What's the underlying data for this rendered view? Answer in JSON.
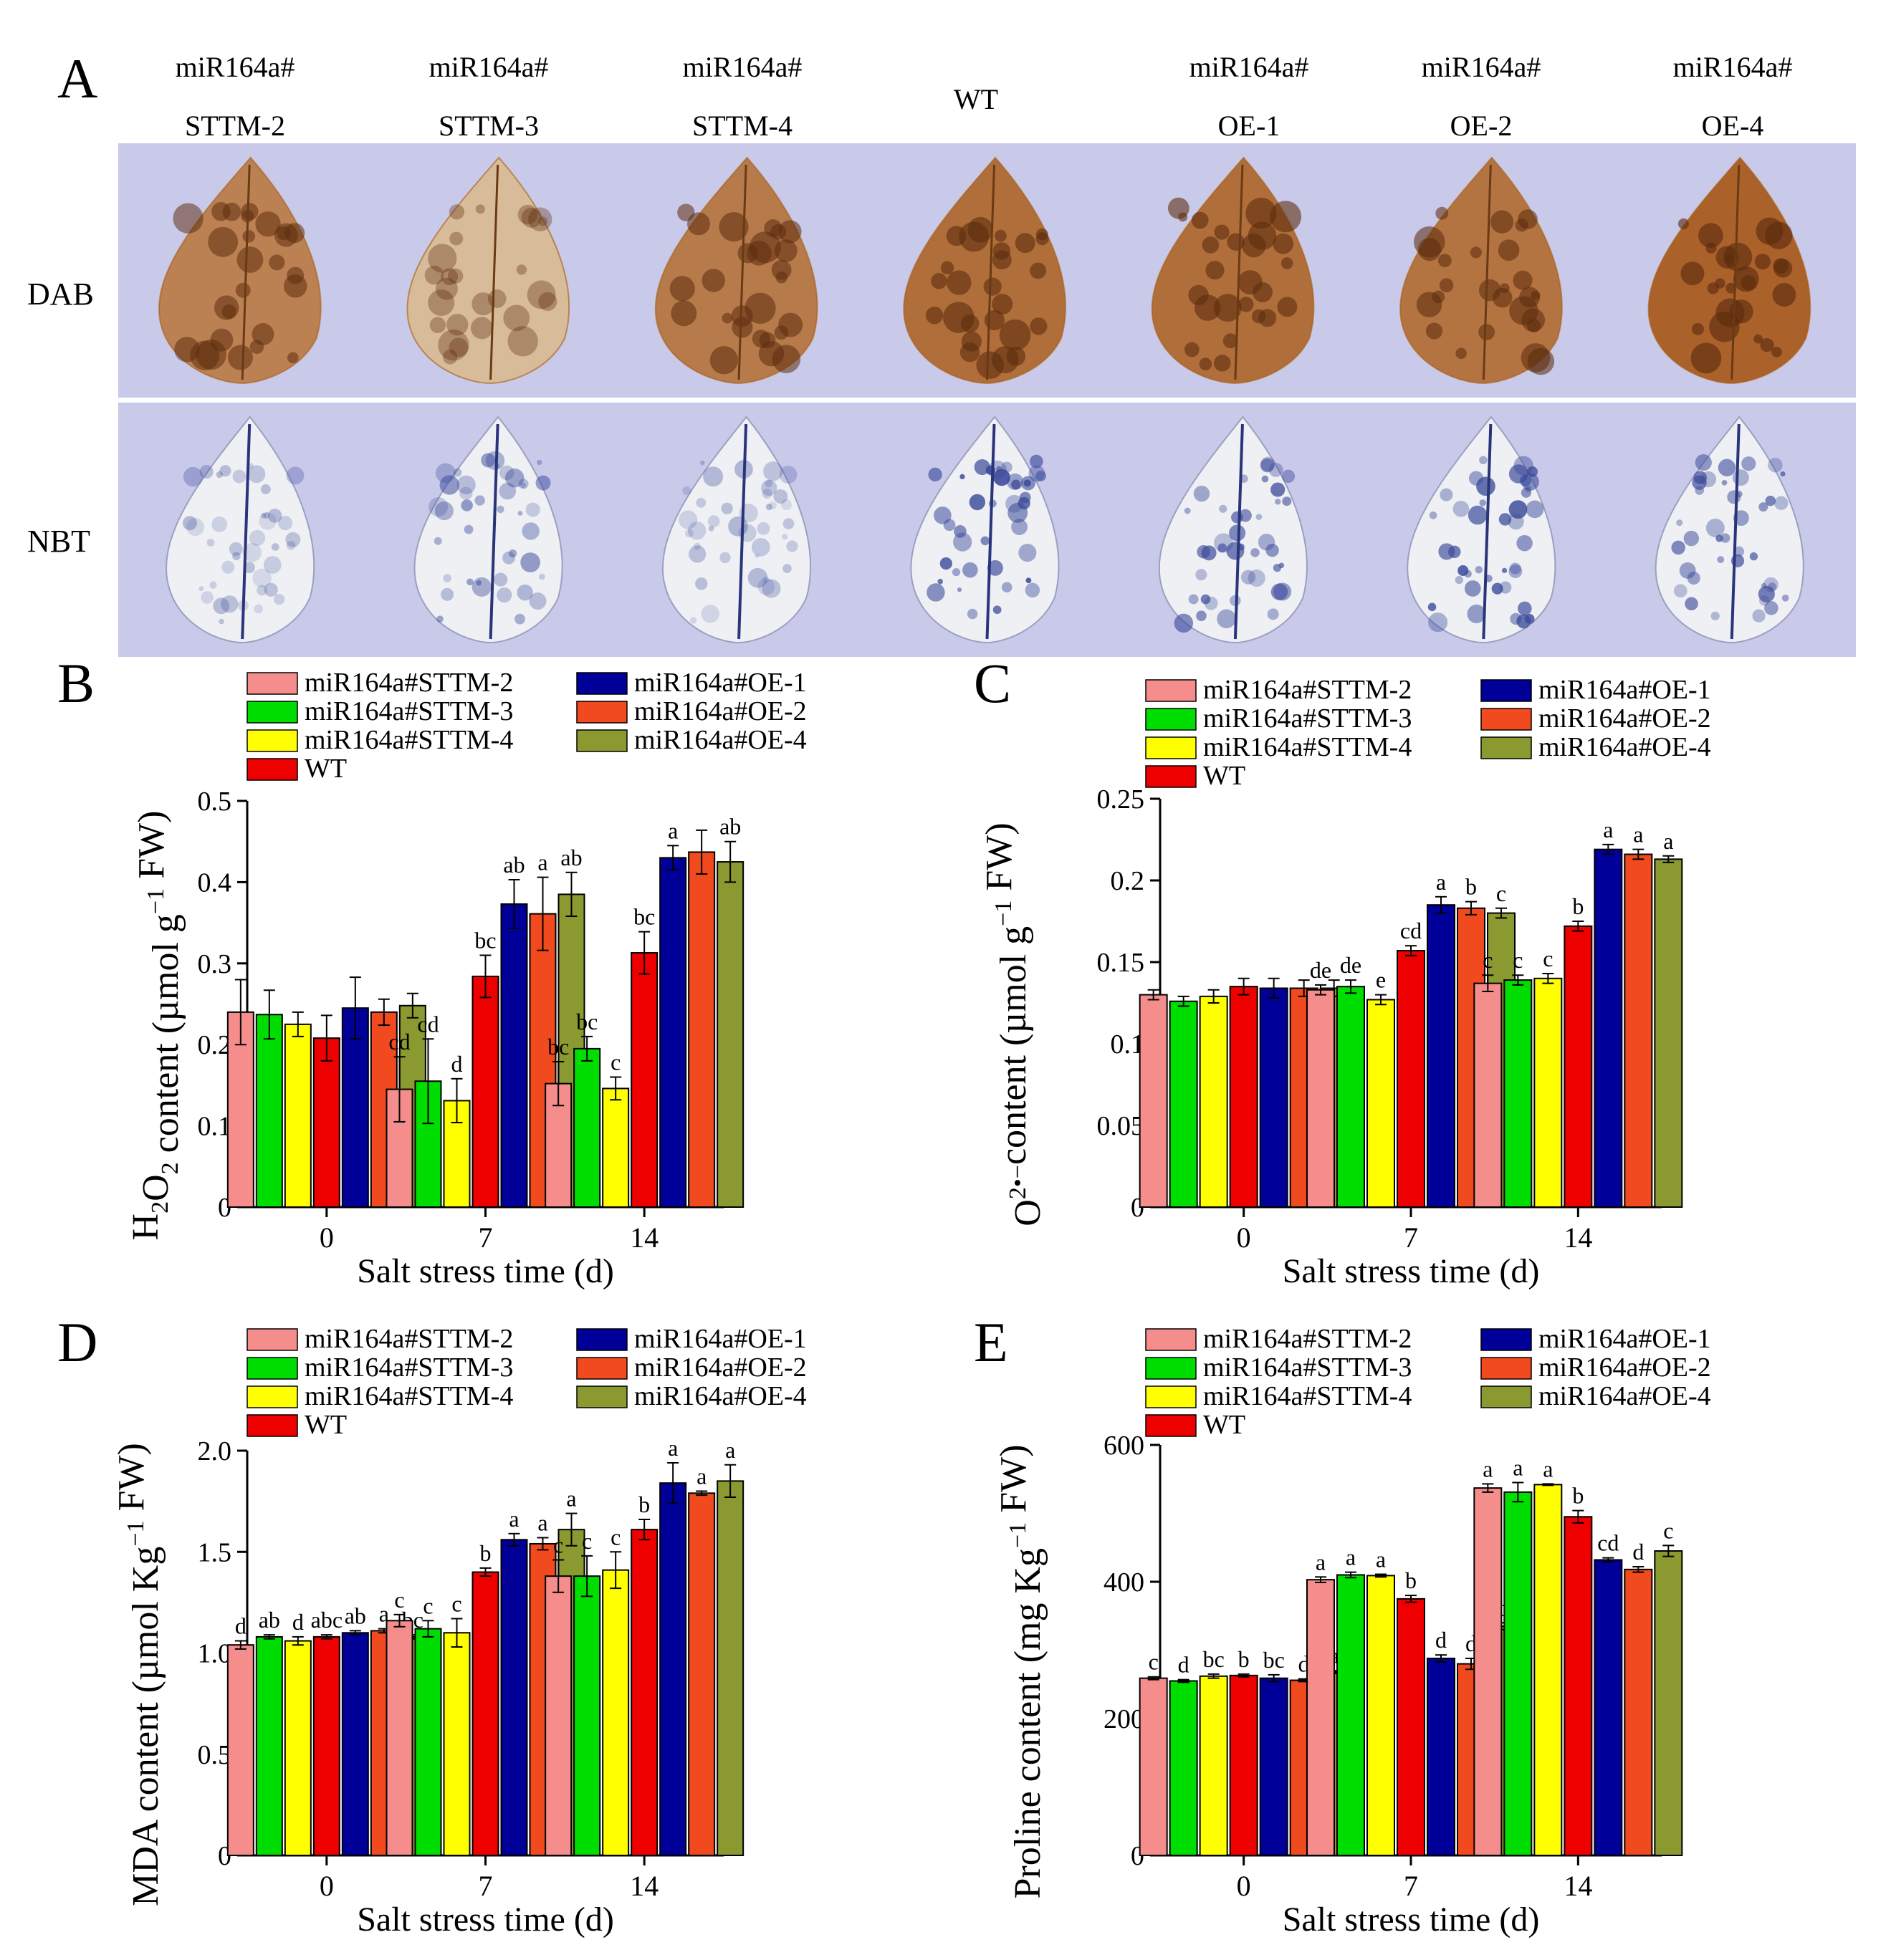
{
  "panel_a": {
    "letter": "A",
    "column_labels": [
      {
        "line1": "miR164a#",
        "line2": "STTM-2"
      },
      {
        "line1": "miR164a#",
        "line2": "STTM-3"
      },
      {
        "line1": "miR164a#",
        "line2": "STTM-4"
      },
      {
        "line1": "WT",
        "line2": ""
      },
      {
        "line1": "miR164a#",
        "line2": "OE-1"
      },
      {
        "line1": "miR164a#",
        "line2": "OE-2"
      },
      {
        "line1": "miR164a#",
        "line2": "OE-4"
      }
    ],
    "rows": [
      "DAB",
      "NBT"
    ]
  },
  "colors": {
    "series": [
      "#f58d8d",
      "#00dd00",
      "#ffff00",
      "#ee0000",
      "#000099",
      "#f04a1e",
      "#8a9a30"
    ],
    "dab_leaf": "#a65a22",
    "nbt_leaf": "#3b4a9a",
    "photo_bg": "#c9c9ea"
  },
  "chart_data": [
    {
      "panel": "B",
      "type": "bar",
      "title": "",
      "ylabel_parts": [
        "H",
        "2",
        "O",
        "2",
        " content (µmol g",
        "−1",
        " FW)"
      ],
      "xlabel": "Salt stress time (d)",
      "categories": [
        "0",
        "7",
        "14"
      ],
      "ylim": [
        0,
        0.5
      ],
      "yticks": [
        "0",
        "0.1",
        "0.2",
        "0.3",
        "0.4",
        "0.5"
      ],
      "ytick_values": [
        0,
        0.1,
        0.2,
        0.3,
        0.4,
        0.5
      ],
      "series": [
        {
          "name": "miR164a#STTM-2",
          "values": [
            0.24,
            0.145,
            0.152
          ],
          "errors": [
            0.04,
            0.04,
            0.027
          ],
          "letters": [
            "",
            "cd",
            "bc"
          ]
        },
        {
          "name": "miR164a#STTM-3",
          "values": [
            0.237,
            0.155,
            0.195
          ],
          "errors": [
            0.03,
            0.052,
            0.015
          ],
          "letters": [
            "",
            "cd",
            "bc"
          ]
        },
        {
          "name": "miR164a#STTM-4",
          "values": [
            0.225,
            0.131,
            0.146
          ],
          "errors": [
            0.015,
            0.027,
            0.014
          ],
          "letters": [
            "",
            "d",
            "c"
          ]
        },
        {
          "name": "WT",
          "values": [
            0.208,
            0.284,
            0.313
          ],
          "errors": [
            0.028,
            0.026,
            0.026
          ],
          "letters": [
            "",
            "bc",
            "bc"
          ]
        },
        {
          "name": "miR164a#OE-1",
          "values": [
            0.245,
            0.373,
            0.43
          ],
          "errors": [
            0.038,
            0.03,
            0.015
          ],
          "letters": [
            "",
            "ab",
            "a"
          ]
        },
        {
          "name": "miR164a#OE-2",
          "values": [
            0.24,
            0.361,
            0.437
          ],
          "errors": [
            0.016,
            0.045,
            0.027
          ],
          "letters": [
            "",
            "a",
            ""
          ]
        },
        {
          "name": "miR164a#OE-4",
          "values": [
            0.248,
            0.385,
            0.425
          ],
          "errors": [
            0.015,
            0.027,
            0.025
          ],
          "letters": [
            "",
            "ab",
            "ab"
          ]
        }
      ]
    },
    {
      "panel": "C",
      "type": "bar",
      "title": "",
      "ylabel_parts": [
        "O",
        "2•−",
        "content (µmol g",
        "−1",
        " FW)"
      ],
      "xlabel": "Salt stress time (d)",
      "categories": [
        "0",
        "7",
        "14"
      ],
      "ylim": [
        0,
        0.25
      ],
      "yticks": [
        "0",
        "0.05",
        "0.1",
        "0.15",
        "0.2",
        "0.25"
      ],
      "ytick_values": [
        0,
        0.05,
        0.1,
        0.15,
        0.2,
        0.25
      ],
      "series": [
        {
          "name": "miR164a#STTM-2",
          "values": [
            0.13,
            0.133,
            0.137
          ],
          "errors": [
            0.003,
            0.003,
            0.005
          ],
          "letters": [
            "",
            "de",
            "c"
          ]
        },
        {
          "name": "miR164a#STTM-3",
          "values": [
            0.126,
            0.135,
            0.139
          ],
          "errors": [
            0.003,
            0.004,
            0.003
          ],
          "letters": [
            "",
            "de",
            "c"
          ]
        },
        {
          "name": "miR164a#STTM-4",
          "values": [
            0.129,
            0.127,
            0.14
          ],
          "errors": [
            0.004,
            0.003,
            0.003
          ],
          "letters": [
            "",
            "e",
            "c"
          ]
        },
        {
          "name": "WT",
          "values": [
            0.135,
            0.157,
            0.172
          ],
          "errors": [
            0.005,
            0.003,
            0.003
          ],
          "letters": [
            "",
            "cd",
            "b"
          ]
        },
        {
          "name": "miR164a#OE-1",
          "values": [
            0.134,
            0.185,
            0.219
          ],
          "errors": [
            0.006,
            0.005,
            0.003
          ],
          "letters": [
            "",
            "a",
            "a"
          ]
        },
        {
          "name": "miR164a#OE-2",
          "values": [
            0.134,
            0.183,
            0.216
          ],
          "errors": [
            0.005,
            0.004,
            0.003
          ],
          "letters": [
            "",
            "b",
            "a"
          ]
        },
        {
          "name": "miR164a#OE-4",
          "values": [
            0.134,
            0.18,
            0.213
          ],
          "errors": [
            0.005,
            0.003,
            0.002
          ],
          "letters": [
            "",
            "c",
            "a"
          ]
        }
      ]
    },
    {
      "panel": "D",
      "type": "bar",
      "title": "",
      "ylabel_parts": [
        "MDA content (µmol Kg",
        "−1",
        " FW)"
      ],
      "xlabel": "Salt stress time (d)",
      "categories": [
        "0",
        "7",
        "14"
      ],
      "ylim": [
        0,
        2.0
      ],
      "yticks": [
        "0",
        "0.5",
        "1.0",
        "1.5",
        "2.0"
      ],
      "ytick_values": [
        0,
        0.5,
        1.0,
        1.5,
        2.0
      ],
      "series": [
        {
          "name": "miR164a#STTM-2",
          "values": [
            1.04,
            1.16,
            1.38
          ],
          "errors": [
            0.02,
            0.03,
            0.08
          ],
          "letters": [
            "d",
            "c",
            "c"
          ]
        },
        {
          "name": "miR164a#STTM-3",
          "values": [
            1.08,
            1.12,
            1.38
          ],
          "errors": [
            0.01,
            0.04,
            0.1
          ],
          "letters": [
            "ab",
            "c",
            "c"
          ]
        },
        {
          "name": "miR164a#STTM-4",
          "values": [
            1.06,
            1.1,
            1.41
          ],
          "errors": [
            0.02,
            0.07,
            0.09
          ],
          "letters": [
            "d",
            "c",
            "c"
          ]
        },
        {
          "name": "WT",
          "values": [
            1.08,
            1.4,
            1.61
          ],
          "errors": [
            0.01,
            0.02,
            0.05
          ],
          "letters": [
            "abc",
            "b",
            "b"
          ]
        },
        {
          "name": "miR164a#OE-1",
          "values": [
            1.1,
            1.56,
            1.84
          ],
          "errors": [
            0.01,
            0.03,
            0.1
          ],
          "letters": [
            "ab",
            "a",
            "a"
          ]
        },
        {
          "name": "miR164a#OE-2",
          "values": [
            1.11,
            1.54,
            1.79
          ],
          "errors": [
            0.01,
            0.03,
            0.01
          ],
          "letters": [
            "a",
            "a",
            "a"
          ]
        },
        {
          "name": "miR164a#OE-4",
          "values": [
            1.08,
            1.61,
            1.85
          ],
          "errors": [
            0.01,
            0.08,
            0.08
          ],
          "letters": [
            "bc",
            "a",
            "a"
          ]
        }
      ]
    },
    {
      "panel": "E",
      "type": "bar",
      "title": "",
      "ylabel_parts": [
        "Proline content (mg Kg",
        "−1",
        " FW)"
      ],
      "xlabel": "Salt stress time (d)",
      "categories": [
        "0",
        "7",
        "14"
      ],
      "ylim": [
        0,
        600
      ],
      "yticks": [
        "0",
        "200",
        "400",
        "600"
      ],
      "ytick_values": [
        0,
        200,
        400,
        600
      ],
      "series": [
        {
          "name": "miR164a#STTM-2",
          "values": [
            259,
            403,
            537
          ],
          "errors": [
            2,
            4,
            6
          ],
          "letters": [
            "c",
            "a",
            "a"
          ]
        },
        {
          "name": "miR164a#STTM-3",
          "values": [
            255,
            410,
            531
          ],
          "errors": [
            2,
            4,
            14
          ],
          "letters": [
            "d",
            "a",
            "a"
          ]
        },
        {
          "name": "miR164a#STTM-4",
          "values": [
            262,
            409,
            542
          ],
          "errors": [
            3,
            2,
            1
          ],
          "letters": [
            "bc",
            "a",
            "a"
          ]
        },
        {
          "name": "WT",
          "values": [
            263,
            375,
            495
          ],
          "errors": [
            2,
            5,
            9
          ],
          "letters": [
            "b",
            "b",
            "b"
          ]
        },
        {
          "name": "miR164a#OE-1",
          "values": [
            259,
            288,
            432
          ],
          "errors": [
            5,
            5,
            3
          ],
          "letters": [
            "bc",
            "d",
            "cd"
          ]
        },
        {
          "name": "miR164a#OE-2",
          "values": [
            256,
            280,
            418
          ],
          "errors": [
            2,
            8,
            4
          ],
          "letters": [
            "d",
            "d",
            "d"
          ]
        },
        {
          "name": "miR164a#OE-4",
          "values": [
            268,
            335,
            445
          ],
          "errors": [
            2,
            5,
            8
          ],
          "letters": [
            "a",
            "c",
            "c"
          ]
        }
      ]
    }
  ]
}
